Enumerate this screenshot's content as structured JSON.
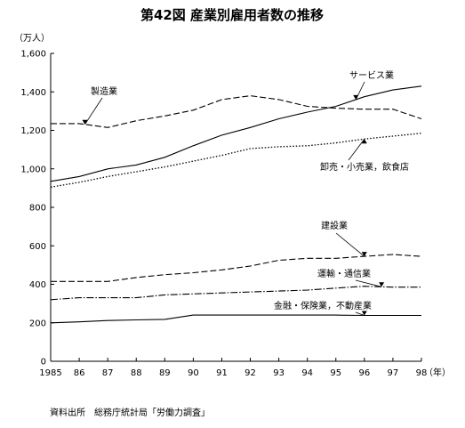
{
  "chart_data": {
    "type": "line",
    "title": "第42図 産業別雇用者数の推移",
    "y_unit": "（万人）",
    "x_unit": "（年）",
    "source": "資料出所　総務庁統計局「労働力調査」",
    "x": [
      1985,
      1986,
      1987,
      1988,
      1989,
      1990,
      1991,
      1992,
      1993,
      1994,
      1995,
      1996,
      1997,
      1998
    ],
    "x_tick_labels": [
      "1985",
      "86",
      "87",
      "88",
      "89",
      "90",
      "91",
      "92",
      "93",
      "94",
      "95",
      "96",
      "97",
      "98"
    ],
    "ylim": [
      0,
      1600
    ],
    "y_ticks": [
      0,
      200,
      400,
      600,
      800,
      1000,
      1200,
      1400,
      1600
    ],
    "y_tick_labels": [
      "0",
      "200",
      "400",
      "600",
      "800",
      "1,000",
      "1,200",
      "1,400",
      "1,600"
    ],
    "grid": false,
    "series": [
      {
        "name": "サービス業",
        "style": "solid",
        "values": [
          935,
          960,
          1000,
          1020,
          1060,
          1120,
          1175,
          1215,
          1260,
          1295,
          1325,
          1375,
          1410,
          1430
        ]
      },
      {
        "name": "製造業",
        "style": "dashed",
        "values": [
          1235,
          1235,
          1215,
          1250,
          1275,
          1305,
          1360,
          1380,
          1360,
          1325,
          1315,
          1310,
          1310,
          1260
        ]
      },
      {
        "name": "卸売・小売業，飲食店",
        "style": "dotted",
        "values": [
          905,
          930,
          960,
          985,
          1010,
          1040,
          1070,
          1105,
          1115,
          1120,
          1135,
          1155,
          1170,
          1185
        ]
      },
      {
        "name": "建設業",
        "style": "dashed",
        "values": [
          415,
          415,
          415,
          435,
          450,
          460,
          475,
          495,
          525,
          535,
          535,
          545,
          555,
          545
        ]
      },
      {
        "name": "運輸・通信業",
        "style": "dashdot",
        "values": [
          320,
          330,
          330,
          330,
          345,
          350,
          355,
          360,
          365,
          370,
          380,
          390,
          385,
          385
        ]
      },
      {
        "name": "金融・保険業，不動産業",
        "style": "solid",
        "values": [
          200,
          205,
          212,
          215,
          218,
          240,
          240,
          240,
          240,
          240,
          240,
          238,
          238,
          238
        ]
      }
    ],
    "annotations": [
      {
        "text": "サービス業",
        "series": "サービス業"
      },
      {
        "text": "製造業",
        "series": "製造業"
      },
      {
        "text": "卸売・小売業，飲食店",
        "series": "卸売・小売業，飲食店"
      },
      {
        "text": "建設業",
        "series": "建設業"
      },
      {
        "text": "運輸・通信業",
        "series": "運輸・通信業"
      },
      {
        "text": "金融・保険業，不動産業",
        "series": "金融・保険業，不動産業"
      }
    ],
    "colors": {
      "line": "#000000",
      "background": "#ffffff"
    }
  }
}
